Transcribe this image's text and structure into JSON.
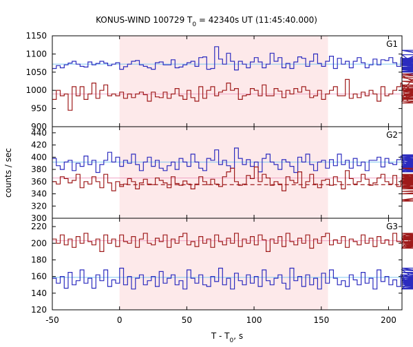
{
  "chart_data": {
    "type": "line",
    "title": {
      "main": "KONUS-WIND 100729 T",
      "sub": "0",
      "rest": " = 42340s UT (11:45:40.000)"
    },
    "xlabel": {
      "main": "T - T",
      "sub": "0",
      "rest": ", s"
    },
    "ylabel": "counts / sec",
    "xlim": [
      -50,
      210
    ],
    "xticks": [
      -50,
      0,
      50,
      100,
      150,
      200
    ],
    "highlight": {
      "from": 0,
      "to": 155,
      "color": "#fde9ea"
    },
    "colors": {
      "blue": "#2b2bbf",
      "red": "#9e1a1a",
      "blue_bg": "#7ec8f0",
      "red_bg": "#f0a4c6"
    },
    "panels": [
      {
        "name": "G1",
        "ylim": [
          900,
          1150
        ],
        "yticks": [
          900,
          950,
          1000,
          1050,
          1100,
          1150
        ],
        "series": [
          {
            "color": "blue",
            "background": 1072,
            "bin": 2.944,
            "values": [
              1060,
              1068,
              1062,
              1070,
              1075,
              1080,
              1072,
              1066,
              1064,
              1078,
              1070,
              1074,
              1080,
              1075,
              1068,
              1072,
              1076,
              1058,
              1065,
              1072,
              1080,
              1082,
              1070,
              1066,
              1062,
              1058,
              1076,
              1078,
              1070,
              1070,
              1084,
              1062,
              1064,
              1070,
              1076,
              1080,
              1066,
              1090,
              1092,
              1058,
              1060,
              1120,
              1086,
              1072,
              1102,
              1080,
              1056,
              1080,
              1072,
              1062,
              1078,
              1090,
              1078,
              1062,
              1072,
              1102,
              1080,
              1090,
              1062,
              1074,
              1060,
              1078,
              1092,
              1088,
              1066,
              1080,
              1100,
              1074,
              1066,
              1080,
              1094,
              1060,
              1088,
              1072,
              1080,
              1062,
              1080,
              1090,
              1076,
              1062,
              1070,
              1086,
              1070,
              1084,
              1082,
              1090,
              1076,
              1066,
              1090,
              1074,
              1070,
              1080,
              1098,
              1060,
              1076,
              1062,
              1080,
              1084,
              1110,
              1088,
              1070,
              1058,
              1060,
              1062,
              1078,
              1072,
              1058,
              1056,
              1072,
              1068,
              1064,
              1076,
              1052,
              1076,
              1082,
              1050,
              1062,
              1070,
              1072,
              1062,
              1062,
              1070,
              1080,
              1086,
              1070,
              1058,
              1072,
              1064,
              1070,
              1110,
              1044,
              1086,
              1068,
              1082,
              1082,
              1052,
              1064,
              1060,
              1062
            ]
          },
          {
            "color": "red",
            "background": 990,
            "bin": 2.944,
            "values": [
              975,
              1000,
              985,
              990,
              945,
              1010,
              985,
              1010,
              975,
              990,
              1020,
              978,
              1000,
              1015,
              985,
              990,
              985,
              995,
              978,
              990,
              980,
              990,
              995,
              988,
              970,
              995,
              982,
              980,
              995,
              978,
              990,
              1005,
              985,
              975,
              1000,
              980,
              970,
              1010,
              978,
              1000,
              1010,
              985,
              995,
              1000,
              1020,
              1000,
              1005,
              975,
              985,
              988,
              1005,
              1000,
              985,
              1015,
              985,
              985,
              1005,
              998,
              980,
              1000,
              990,
              1005,
              995,
              1010,
              1000,
              980,
              985,
              1000,
              975,
              990,
              1000,
              1010,
              985,
              985,
              1030,
              978,
              990,
              980,
              995,
              985,
              1000,
              990,
              970,
              1010,
              985,
              990,
              1000,
              1010,
              1020,
              985,
              970,
              1000,
              1040,
              1015,
              985,
              1000,
              975,
              985,
              1000,
              990,
              985,
              1005,
              990,
              978,
              965,
              985,
              1000,
              985,
              1000,
              975,
              995,
              985,
              1000,
              1035,
              985,
              1010,
              995,
              985,
              1000,
              985,
              978,
              990,
              1000,
              1010,
              990,
              985,
              1005,
              985,
              1000,
              1025,
              975,
              990,
              1015,
              985,
              1000,
              995,
              990,
              980,
              1045,
              970,
              985,
              1000,
              990,
              978,
              985,
              1000
            ]
          }
        ]
      },
      {
        "name": "G2",
        "ylim": [
          300,
          450
        ],
        "yticks": [
          300,
          320,
          340,
          360,
          380,
          400,
          420,
          440
        ],
        "series": [
          {
            "color": "blue",
            "background": 392,
            "bin": 2.944,
            "values": [
              398,
              386,
              380,
              392,
              395,
              378,
              390,
              385,
              402,
              388,
              395,
              375,
              388,
              395,
              408,
              392,
              400,
              385,
              395,
              390,
              405,
              388,
              378,
              392,
              400,
              385,
              395,
              382,
              378,
              386,
              392,
              380,
              398,
              392,
              385,
              405,
              392,
              382,
              378,
              398,
              395,
              412,
              388,
              395,
              386,
              382,
              415,
              398,
              388,
              396,
              385,
              392,
              376,
              398,
              405,
              392,
              388,
              380,
              396,
              392,
              385,
              375,
              400,
              392,
              405,
              388,
              378,
              392,
              395,
              382,
              396,
              386,
              405,
              388,
              395,
              382,
              398,
              386,
              392,
              378,
              395,
              395,
              400,
              384,
              398,
              390,
              388,
              396,
              402,
              385,
              392,
              380,
              395,
              376,
              392,
              388,
              396,
              383,
              400,
              392,
              380,
              385,
              398,
              389,
              382,
              396,
              388,
              403,
              392,
              400,
              385,
              378,
              395,
              386,
              396,
              388,
              384,
              398,
              380,
              392,
              386,
              402,
              388,
              395,
              376,
              395,
              388,
              404,
              392,
              378,
              388,
              396,
              386,
              392,
              384,
              398,
              384,
              396,
              392
            ]
          },
          {
            "color": "red",
            "background": 366,
            "dashed": 355,
            "bin": 2.944,
            "values": [
              360,
              356,
              368,
              365,
              358,
              362,
              372,
              350,
              360,
              356,
              368,
              360,
              350,
              372,
              358,
              345,
              360,
              352,
              356,
              365,
              360,
              348,
              358,
              364,
              356,
              355,
              366,
              362,
              358,
              350,
              368,
              357,
              354,
              361,
              356,
              348,
              356,
              368,
              360,
              355,
              364,
              356,
              352,
              368,
              376,
              382,
              360,
              354,
              356,
              370,
              365,
              384,
              360,
              372,
              366,
              354,
              360,
              356,
              345,
              368,
              362,
              358,
              376,
              350,
              360,
              372,
              356,
              350,
              362,
              364,
              354,
              368,
              360,
              348,
              378,
              365,
              356,
              360,
              372,
              364,
              354,
              358,
              366,
              372,
              360,
              356,
              370,
              352,
              362,
              360,
              356,
              368,
              372,
              360,
              350,
              362,
              356,
              365,
              370,
              360,
              352,
              366,
              372,
              356,
              360,
              364,
              350,
              358,
              372,
              360,
              368,
              356,
              362,
              372,
              360,
              354,
              364,
              382,
              360,
              354,
              356,
              366,
              328,
              356,
              362,
              344,
              358,
              352,
              330,
              368,
              356,
              360,
              372,
              352,
              348,
              362,
              356,
              340,
              366
            ]
          }
        ]
      },
      {
        "name": "G3",
        "ylim": [
          120,
          230
        ],
        "yticks": [
          120,
          140,
          160,
          180,
          200,
          220
        ],
        "series": [
          {
            "color": "blue",
            "background": 159,
            "bin": 2.944,
            "values": [
              158,
              152,
              160,
              146,
              165,
              150,
              155,
              168,
              152,
              158,
              146,
              162,
              155,
              168,
              148,
              156,
              152,
              170,
              150,
              160,
              145,
              158,
              162,
              150,
              155,
              160,
              148,
              166,
              152,
              158,
              162,
              150,
              155,
              145,
              168,
              158,
              152,
              162,
              150,
              148,
              160,
              154,
              170,
              150,
              158,
              145,
              164,
              155,
              150,
              162,
              152,
              160,
              148,
              168,
              155,
              150,
              158,
              162,
              152,
              145,
              170,
              155,
              160,
              148,
              162,
              150,
              158,
              145,
              164,
              152,
              168,
              158,
              150,
              155,
              148,
              162,
              156,
              150,
              165,
              152,
              158,
              145,
              168,
              154,
              160,
              150,
              156,
              148,
              162,
              156,
              152,
              158,
              145,
              168,
              150,
              160,
              156,
              152,
              162,
              148,
              158,
              150,
              165,
              156,
              152,
              148,
              162,
              158,
              146,
              155,
              160,
              152,
              170,
              150,
              158,
              148,
              162,
              152,
              156,
              145,
              160,
              152,
              158,
              165,
              150,
              156,
              145,
              160,
              152,
              168,
              150,
              158,
              154,
              160,
              148,
              156,
              152,
              158,
              150
            ]
          },
          {
            "color": "red",
            "background": 203,
            "bin": 2.944,
            "values": [
              205,
              200,
              210,
              198,
              205,
              195,
              208,
              200,
              212,
              202,
              198,
              205,
              190,
              210,
              200,
              205,
              196,
              210,
              202,
              200,
              208,
              195,
              205,
              212,
              200,
              198,
              206,
              202,
              210,
              195,
              205,
              200,
              208,
              212,
              198,
              202,
              196,
              208,
              200,
              205,
              195,
              210,
              202,
              198,
              206,
              200,
              212,
              196,
              205,
              200,
              208,
              198,
              210,
              204,
              190,
              205,
              200,
              208,
              196,
              212,
              202,
              198,
              206,
              200,
              210,
              194,
              205,
              200,
              208,
              212,
              198,
              204,
              200,
              208,
              195,
              205,
              202,
              198,
              210,
              200,
              206,
              196,
              208,
              200,
              204,
              198,
              212,
              202,
              200,
              206,
              194,
              208,
              200,
              205,
              210,
              198,
              202,
              200,
              208,
              196,
              205,
              212,
              200,
              198,
              206,
              202,
              196,
              208,
              200,
              205,
              194,
              210,
              200,
              206,
              198,
              204,
              200,
              210,
              196,
              205,
              202,
              198,
              208,
              200,
              212,
              196,
              205,
              200,
              208,
              202,
              198,
              205,
              200,
              210,
              194,
              205,
              200,
              208,
              202
            ]
          }
        ]
      }
    ]
  }
}
